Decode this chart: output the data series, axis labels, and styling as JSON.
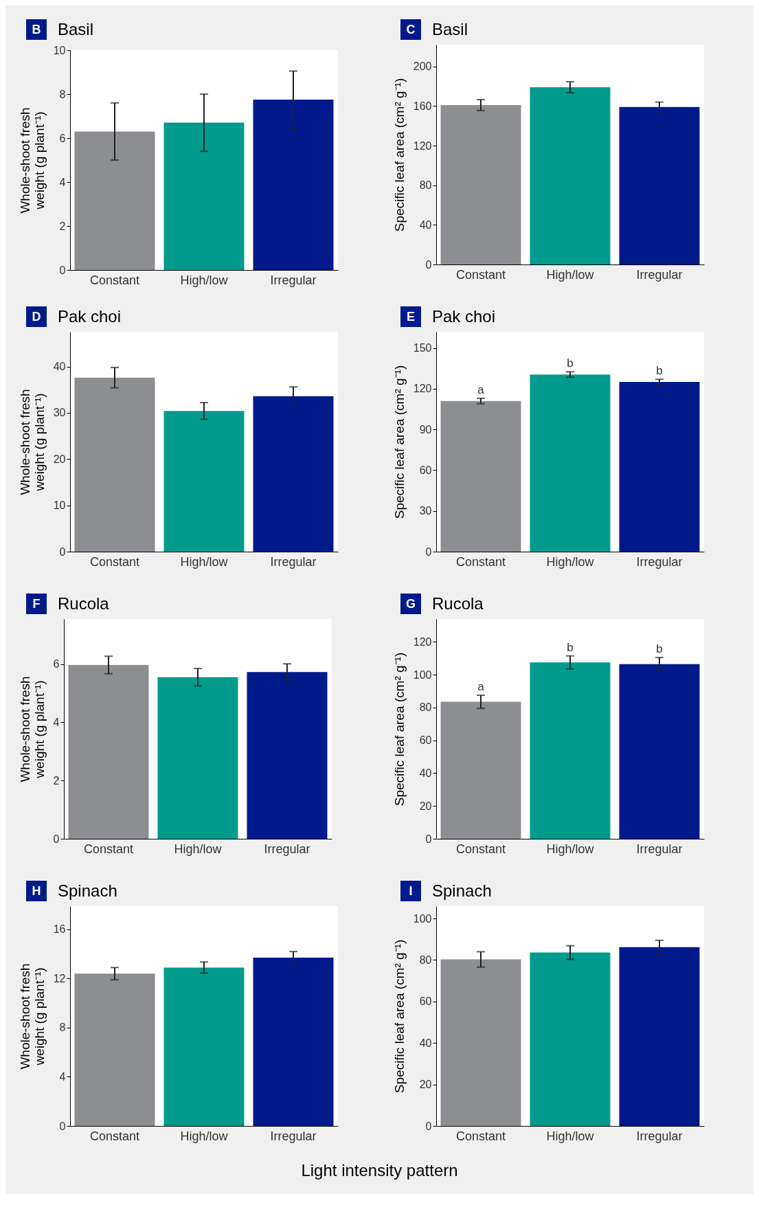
{
  "chart_data": [
    {
      "type": "bar",
      "title": "Basil",
      "annotations": [
        "B"
      ],
      "ylabel": "Whole-shoot fresh weight (g plant⁻¹)",
      "categories": [
        "Constant",
        "High/low",
        "Irregular"
      ],
      "values": [
        6.3,
        6.7,
        7.75
      ],
      "errors": [
        1.3,
        1.3,
        1.3
      ],
      "colors": [
        "#8c8e92",
        "#009b8d",
        "#001a8c"
      ],
      "ylim": [
        0,
        10
      ],
      "yticks": [
        0,
        2,
        4,
        6,
        8,
        10
      ]
    },
    {
      "type": "bar",
      "title": "Basil",
      "annotations": [
        "C"
      ],
      "ylabel": "Specific leaf area (cm² g⁻¹)",
      "categories": [
        "Constant",
        "High/low",
        "Irregular"
      ],
      "values": [
        161,
        179,
        159
      ],
      "errors": [
        5.5,
        5.5,
        5
      ],
      "colors": [
        "#8c8e92",
        "#009b8d",
        "#001a8c"
      ],
      "ylim": [
        0,
        222
      ],
      "yticks": [
        0,
        40,
        80,
        120,
        160,
        200
      ]
    },
    {
      "type": "bar",
      "title": "Pak choi",
      "annotations": [
        "D"
      ],
      "ylabel": "Whole-shoot fresh weight (g plant⁻¹)",
      "categories": [
        "Constant",
        "High/low",
        "Irregular"
      ],
      "values": [
        37.6,
        30.4,
        33.6
      ],
      "errors": [
        2.2,
        1.8,
        2
      ],
      "colors": [
        "#8c8e92",
        "#009b8d",
        "#001a8c"
      ],
      "ylim": [
        0,
        47.5
      ],
      "yticks": [
        0,
        10,
        20,
        30,
        40
      ]
    },
    {
      "type": "bar",
      "title": "Pak choi",
      "annotations": [
        "E",
        {
          "text": "a",
          "x": "Constant",
          "y": 113
        },
        {
          "text": "b",
          "x": "High/low",
          "y": 132.5
        },
        {
          "text": "b",
          "x": "Irregular",
          "y": 127
        }
      ],
      "ylabel": "Specific leaf area (cm² g⁻¹)",
      "categories": [
        "Constant",
        "High/low",
        "Irregular"
      ],
      "values": [
        111,
        130.5,
        125
      ],
      "errors": [
        2,
        2,
        2
      ],
      "colors": [
        "#8c8e92",
        "#009b8d",
        "#001a8c"
      ],
      "ylim": [
        0,
        162
      ],
      "yticks": [
        0,
        30,
        60,
        90,
        120,
        150
      ]
    },
    {
      "type": "bar",
      "title": "Rucola",
      "annotations": [
        "F"
      ],
      "ylabel": "Whole-shoot fresh weight (g plant⁻¹)",
      "categories": [
        "Constant",
        "High/low",
        "Irregular"
      ],
      "values": [
        5.97,
        5.55,
        5.73
      ],
      "errors": [
        0.3,
        0.3,
        0.28
      ],
      "colors": [
        "#8c8e92",
        "#009b8d",
        "#001a8c"
      ],
      "ylim": [
        0,
        7.55
      ],
      "yticks": [
        0,
        2,
        4,
        6
      ]
    },
    {
      "type": "bar",
      "title": "Rucola",
      "annotations": [
        "G",
        {
          "text": "a",
          "x": "Constant",
          "y": 87.5
        },
        {
          "text": "b",
          "x": "High/low",
          "y": 111.5
        },
        {
          "text": "b",
          "x": "Irregular",
          "y": 110.5
        }
      ],
      "ylabel": "Specific leaf area (cm² g⁻¹)",
      "categories": [
        "Constant",
        "High/low",
        "Irregular"
      ],
      "values": [
        83.5,
        107.5,
        106.5
      ],
      "errors": [
        4,
        4,
        4
      ],
      "colors": [
        "#8c8e92",
        "#009b8d",
        "#001a8c"
      ],
      "ylim": [
        0,
        134
      ],
      "yticks": [
        0,
        20,
        40,
        60,
        80,
        100,
        120
      ]
    },
    {
      "type": "bar",
      "title": "Spinach",
      "annotations": [
        "H"
      ],
      "ylabel": "Whole-shoot fresh weight (g plant⁻¹)",
      "categories": [
        "Constant",
        "High/low",
        "Irregular"
      ],
      "values": [
        12.4,
        12.9,
        13.7
      ],
      "errors": [
        0.5,
        0.45,
        0.5
      ],
      "colors": [
        "#8c8e92",
        "#009b8d",
        "#001a8c"
      ],
      "ylim": [
        0,
        17.9
      ],
      "yticks": [
        0,
        4,
        8,
        12,
        16
      ]
    },
    {
      "type": "bar",
      "title": "Spinach",
      "annotations": [
        "I"
      ],
      "ylabel": "Specific leaf area (cm² g⁻¹)",
      "xlabel": "Light intensity pattern",
      "categories": [
        "Constant",
        "High/low",
        "Irregular"
      ],
      "values": [
        80.3,
        83.6,
        86.2
      ],
      "errors": [
        3.7,
        3.3,
        3.3
      ],
      "colors": [
        "#8c8e92",
        "#009b8d",
        "#001a8c"
      ],
      "ylim": [
        0,
        106
      ],
      "yticks": [
        0,
        20,
        40,
        60,
        80,
        100
      ]
    }
  ]
}
